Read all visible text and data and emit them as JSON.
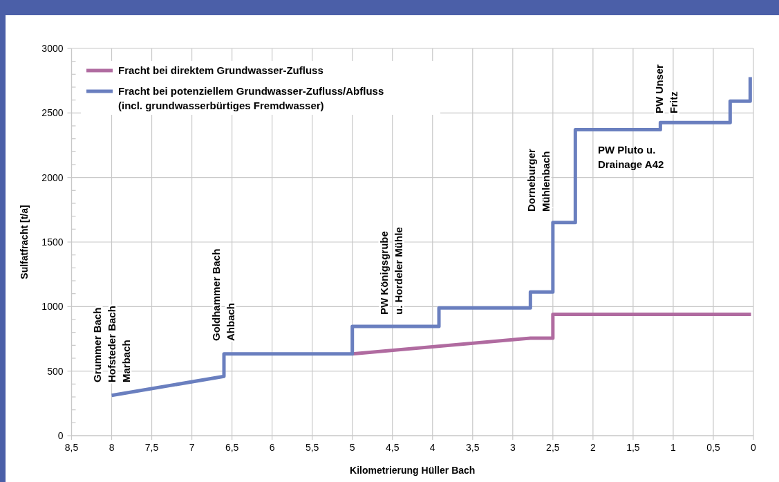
{
  "chart_data": {
    "type": "line",
    "xlabel": "Kilometrierung Hüller Bach",
    "ylabel": "Sulfatfracht [t/a]",
    "xlim": [
      8.5,
      0
    ],
    "xticks": [
      {
        "value": 8.5,
        "label": "8,5"
      },
      8,
      {
        "value": 7.5,
        "label": "7,5"
      },
      7,
      {
        "value": 6.5,
        "label": "6,5"
      },
      6,
      {
        "value": 5.5,
        "label": "5,5"
      },
      5,
      {
        "value": 4.5,
        "label": "4,5"
      },
      4,
      {
        "value": 3.5,
        "label": "3,5"
      },
      3,
      {
        "value": 2.5,
        "label": "2,5"
      },
      2,
      {
        "value": 1.5,
        "label": "1,5"
      },
      1,
      {
        "value": 0.5,
        "label": "0,5"
      },
      0
    ],
    "ylim": [
      0,
      3000
    ],
    "yticks": [
      0,
      {
        "value": 100,
        "label": null
      },
      {
        "value": 200,
        "label": null
      },
      {
        "value": 300,
        "label": null
      },
      {
        "value": 400,
        "label": null
      },
      500,
      {
        "value": 600,
        "label": null
      },
      {
        "value": 700,
        "label": null
      },
      {
        "value": 800,
        "label": null
      },
      {
        "value": 900,
        "label": null
      },
      1000,
      {
        "value": 1100,
        "label": null
      },
      {
        "value": 1200,
        "label": null
      },
      {
        "value": 1300,
        "label": null
      },
      {
        "value": 1400,
        "label": null
      },
      1500,
      {
        "value": 1600,
        "label": null
      },
      {
        "value": 1700,
        "label": null
      },
      {
        "value": 1800,
        "label": null
      },
      {
        "value": 1900,
        "label": null
      },
      2000,
      {
        "value": 2100,
        "label": null
      },
      {
        "value": 2200,
        "label": null
      },
      {
        "value": 2300,
        "label": null
      },
      {
        "value": 2400,
        "label": null
      },
      2500,
      {
        "value": 2600,
        "label": null
      },
      {
        "value": 2700,
        "label": null
      },
      {
        "value": 2800,
        "label": null
      },
      {
        "value": 2900,
        "label": null
      },
      3000
    ],
    "grid": true,
    "legend": "top left",
    "marker": "none",
    "line_style": "solid",
    "series": [
      {
        "name": "Fracht bei direktem Grundwasser-Zufluss",
        "color": "#b06ba0",
        "x": [
          5,
          2.78,
          2.5,
          2.5,
          0.03
        ],
        "values": [
          634,
          755,
          755,
          940,
          940
        ]
      },
      {
        "name": "Fracht bei potenziellem Grundwasser-Zufluss/Abfluss\n(incl. grundwasserbürtiges Fremdwasser)",
        "color": "#6a7fbf",
        "x": [
          8,
          6.6,
          6.6,
          5,
          5,
          3.92,
          3.92,
          2.78,
          2.78,
          2.5,
          2.5,
          2.22,
          2.22,
          1.16,
          1.16,
          0.29,
          0.29,
          0.04,
          0.04
        ],
        "values": [
          312,
          459,
          634,
          634,
          846,
          846,
          990,
          990,
          1113,
          1113,
          1651,
          1651,
          2370,
          2370,
          2426,
          2426,
          2591,
          2591,
          2778
        ]
      }
    ],
    "annotations": [
      "Grummer Bach\nHofsteder Bach\nMarbach",
      "Goldhammer Bach\nAhbach",
      "PW Königsgrube\nu. Hordeler Mühle",
      "Dorneburger\nMühlenbach",
      "PW Pluto u.\nDrainage A42",
      "PW Unser\nFritz"
    ]
  }
}
